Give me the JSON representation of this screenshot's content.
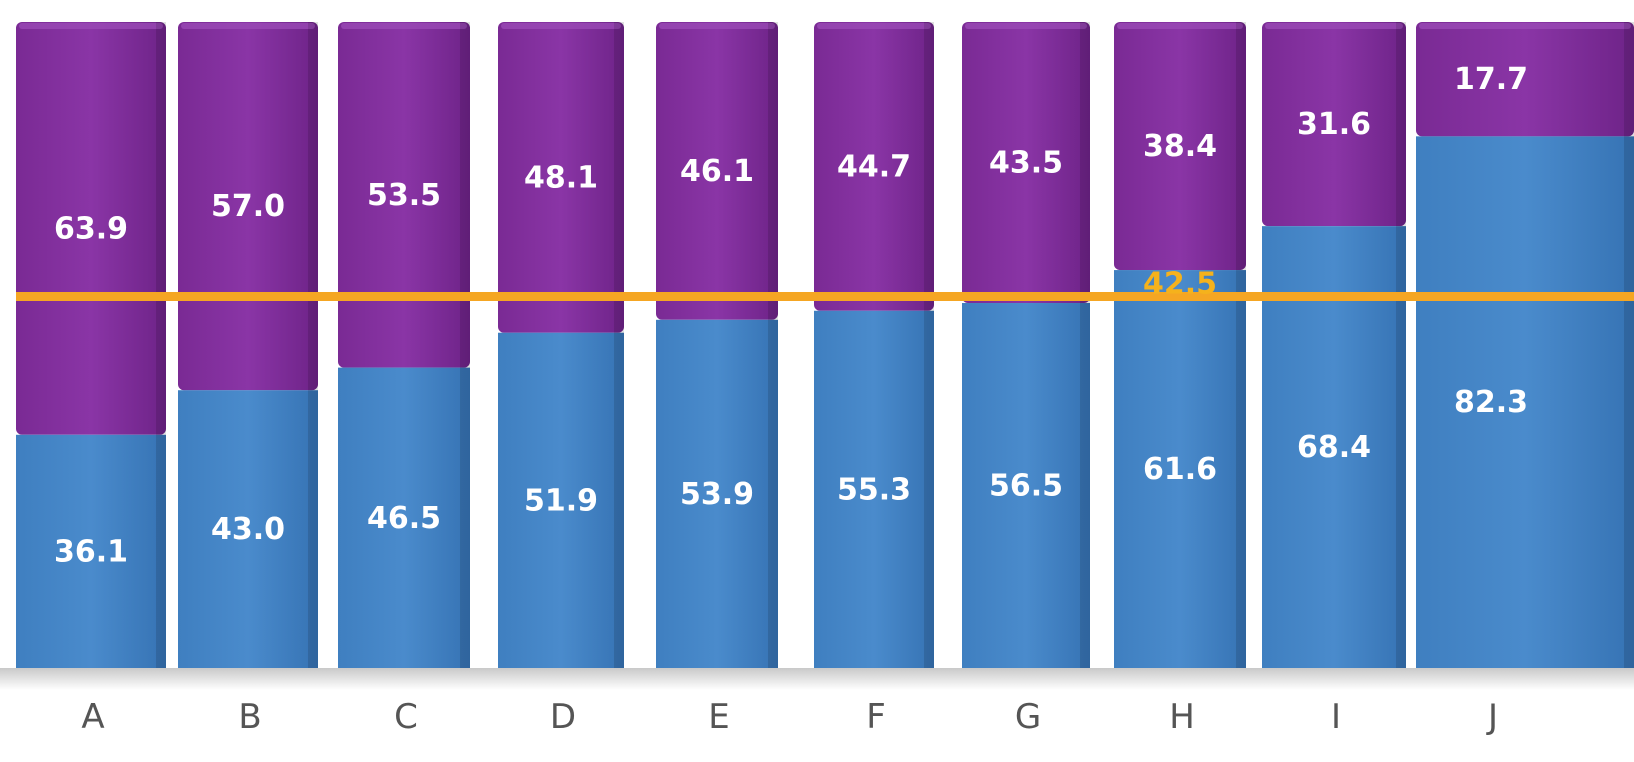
{
  "chart_data": {
    "type": "bar",
    "stacked": true,
    "normalized_to": 100,
    "categories": [
      "A",
      "B",
      "C",
      "D",
      "E",
      "F",
      "G",
      "H",
      "I",
      "J"
    ],
    "series": [
      {
        "values": [
          36.1,
          43.0,
          46.5,
          51.9,
          53.9,
          55.3,
          56.5,
          61.6,
          68.4,
          82.3
        ],
        "color": "#3d80c2"
      },
      {
        "values": [
          63.9,
          57.0,
          53.5,
          48.1,
          46.1,
          44.7,
          43.5,
          38.4,
          31.6,
          17.7
        ],
        "color": "#7e2c98"
      }
    ],
    "reference_line": {
      "value": 57.5,
      "color": "#f5a623"
    },
    "annotations": [
      {
        "text": "42.5",
        "category": "H",
        "color": "#f5b21c"
      }
    ],
    "ylim": [
      0,
      100
    ],
    "grid": false,
    "legend": "none"
  }
}
